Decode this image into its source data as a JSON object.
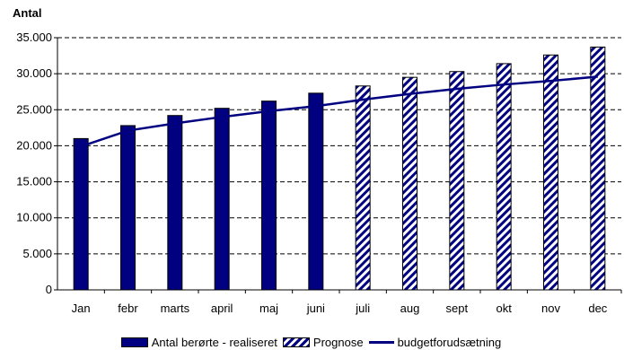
{
  "chart_data": {
    "type": "bar",
    "ylabel": "Antal",
    "ylim": [
      0,
      35000
    ],
    "yticks": [
      0,
      5000,
      10000,
      15000,
      20000,
      25000,
      30000,
      35000
    ],
    "ytick_labels": [
      "0",
      "5.000",
      "10.000",
      "15.000",
      "20.000",
      "25.000",
      "30.000",
      "35.000"
    ],
    "categories": [
      "Jan",
      "febr",
      "marts",
      "april",
      "maj",
      "juni",
      "juli",
      "aug",
      "sept",
      "okt",
      "nov",
      "dec"
    ],
    "grid": "horizontal dashed",
    "legend_position": "bottom",
    "series": [
      {
        "name": "Antal berørte - realiseret",
        "kind": "bar",
        "color": "#000080",
        "values": [
          21000,
          22800,
          24200,
          25200,
          26200,
          27300,
          null,
          null,
          null,
          null,
          null,
          null
        ]
      },
      {
        "name": "Prognose",
        "kind": "hatched-bar",
        "color": "#000080",
        "values": [
          null,
          null,
          null,
          null,
          null,
          null,
          28300,
          29500,
          30300,
          31400,
          32600,
          33700
        ]
      },
      {
        "name": "budgetforudsætning",
        "kind": "line",
        "color": "#000080",
        "values": [
          19900,
          22100,
          23100,
          24000,
          24800,
          25500,
          26400,
          27200,
          27900,
          28500,
          29000,
          29600
        ]
      }
    ]
  }
}
